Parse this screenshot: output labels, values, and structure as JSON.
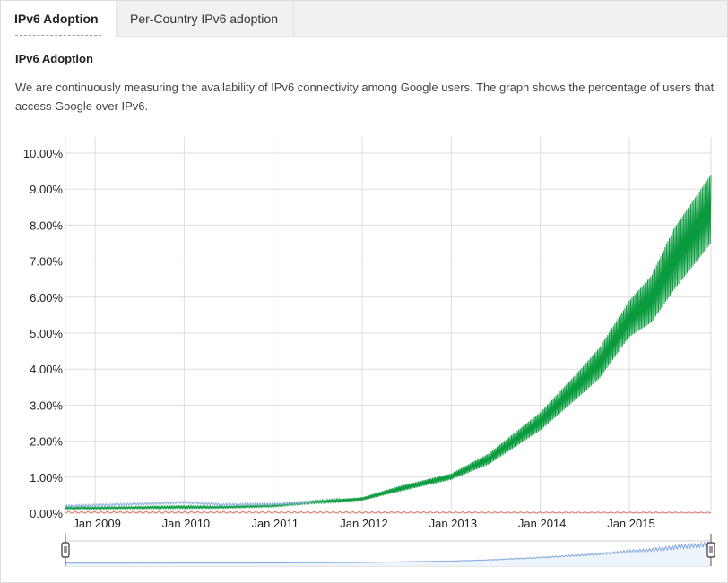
{
  "tabs": [
    {
      "label": "IPv6 Adoption",
      "active": true
    },
    {
      "label": "Per-Country IPv6 adoption",
      "active": false
    }
  ],
  "section": {
    "title": "IPv6 Adoption",
    "description": "We are continuously measuring the availability of IPv6 connectivity among Google users. The graph shows the percentage of users that access Google over IPv6."
  },
  "colors": {
    "main_series": "#0b9b3f",
    "secondary_series": "#8fb0e0",
    "third_series": "#e07a6a",
    "grid": "#dddddd",
    "range_fill": "#eef4fc",
    "range_line": "#7fa6dc"
  },
  "chart_data": {
    "type": "line",
    "title": "",
    "xlabel": "",
    "ylabel": "",
    "ylim": [
      0,
      10
    ],
    "yticks": [
      "0.00%",
      "1.00%",
      "2.00%",
      "3.00%",
      "4.00%",
      "5.00%",
      "6.00%",
      "7.00%",
      "8.00%",
      "9.00%",
      "10.00%"
    ],
    "xticks": [
      "Jan 2009",
      "Jan 2010",
      "Jan 2011",
      "Jan 2012",
      "Jan 2013",
      "Jan 2014",
      "Jan 2015"
    ],
    "xlim": [
      "2008-09",
      "2015-12"
    ],
    "grid": true,
    "series": [
      {
        "color": "#0b9b3f",
        "x": [
          "2008-09",
          "2009-01",
          "2009-06",
          "2010-01",
          "2010-06",
          "2011-01",
          "2011-06",
          "2012-01",
          "2012-06",
          "2013-01",
          "2013-06",
          "2014-01",
          "2014-06",
          "2014-09",
          "2015-01",
          "2015-04",
          "2015-07",
          "2015-12"
        ],
        "y": [
          0.15,
          0.14,
          0.15,
          0.17,
          0.16,
          0.2,
          0.3,
          0.4,
          0.68,
          1.0,
          1.5,
          2.5,
          3.5,
          4.2,
          5.2,
          5.9,
          7.0,
          8.4
        ],
        "low": [
          0.12,
          0.12,
          0.13,
          0.14,
          0.14,
          0.18,
          0.27,
          0.35,
          0.6,
          0.93,
          1.35,
          2.3,
          3.2,
          3.75,
          4.9,
          5.3,
          6.2,
          7.5
        ],
        "high": [
          0.18,
          0.17,
          0.18,
          0.2,
          0.19,
          0.23,
          0.33,
          0.44,
          0.75,
          1.1,
          1.65,
          2.8,
          3.9,
          4.6,
          5.9,
          6.6,
          7.9,
          9.4
        ]
      },
      {
        "color": "#8fb0e0",
        "x": [
          "2008-09",
          "2009-06",
          "2010-01",
          "2010-06",
          "2011-01",
          "2011-06"
        ],
        "y": [
          0.2,
          0.25,
          0.3,
          0.24,
          0.25,
          0.3
        ]
      },
      {
        "color": "#e07a6a",
        "x": [
          "2008-09",
          "2015-12"
        ],
        "y": [
          0.02,
          0.0
        ]
      }
    ]
  }
}
